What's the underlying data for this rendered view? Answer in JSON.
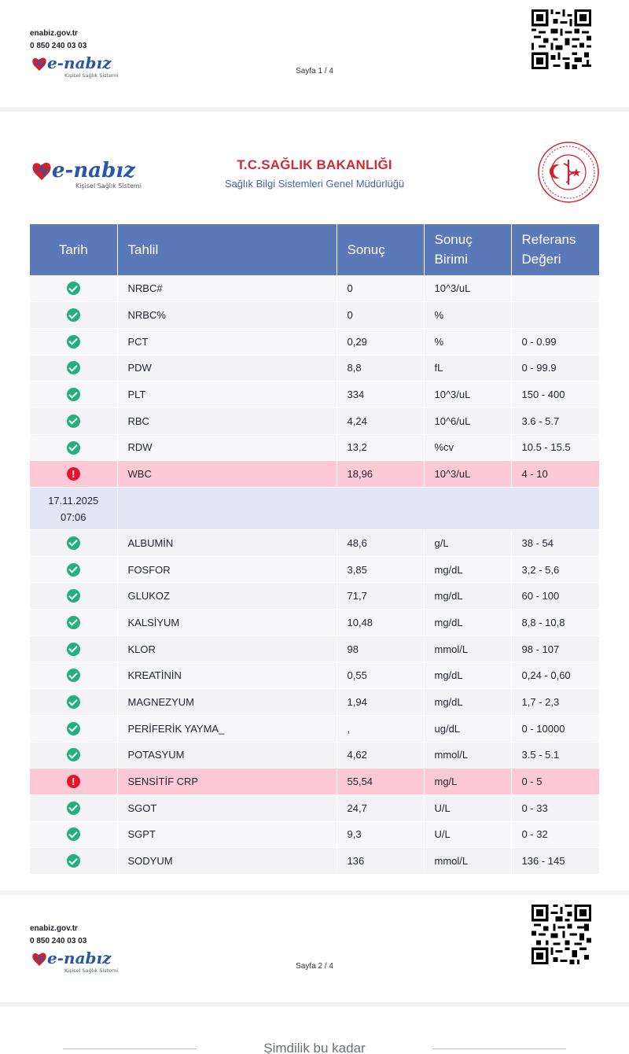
{
  "footer": {
    "site": "enabiz.gov.tr",
    "phone": "0 850 240 03 03",
    "logo_text": "e-nabız",
    "logo_tagline": "Kişisel Sağlık Sistemi",
    "page_first": "Sayfa 1 / 4",
    "page_second": "Sayfa 2 / 4"
  },
  "header": {
    "logo_text": "e-nabız",
    "logo_tagline": "Kişisel Sağlık Sistemi",
    "title": "T.C.SAĞLIK BAKANLIĞI",
    "subtitle": "Sağlık Bilgi Sistemleri Genel Müdürlüğü",
    "seal_icon": "ministry-seal-icon"
  },
  "table": {
    "headers": [
      "Tarih",
      "Tahlil",
      "Sonuç",
      "Sonuç Birimi",
      "Referans Değeri"
    ],
    "rows_a": [
      {
        "status": "ok",
        "test": "NRBC#",
        "result": "0",
        "unit": "10^3/uL",
        "ref": ""
      },
      {
        "status": "ok",
        "test": "NRBC%",
        "result": "0",
        "unit": "%",
        "ref": ""
      },
      {
        "status": "ok",
        "test": "PCT",
        "result": "0,29",
        "unit": "%",
        "ref": "0 - 0.99"
      },
      {
        "status": "ok",
        "test": "PDW",
        "result": "8,8",
        "unit": "fL",
        "ref": "0 - 99.9"
      },
      {
        "status": "ok",
        "test": "PLT",
        "result": "334",
        "unit": "10^3/uL",
        "ref": "150 - 400"
      },
      {
        "status": "ok",
        "test": "RBC",
        "result": "4,24",
        "unit": "10^6/uL",
        "ref": "3.6 - 5.7"
      },
      {
        "status": "ok",
        "test": "RDW",
        "result": "13,2",
        "unit": "%cv",
        "ref": "10.5 - 15.5"
      },
      {
        "status": "bad",
        "test": "WBC",
        "result": "18,96",
        "unit": "10^3/uL",
        "ref": "4 - 10"
      }
    ],
    "date_row": {
      "date": "17.11.2025",
      "time": "07:06"
    },
    "rows_b": [
      {
        "status": "ok",
        "test": "ALBUMİN",
        "result": "48,6",
        "unit": "g/L",
        "ref": "38 - 54"
      },
      {
        "status": "ok",
        "test": "FOSFOR",
        "result": "3,85",
        "unit": "mg/dL",
        "ref": "3,2 - 5,6"
      },
      {
        "status": "ok",
        "test": "GLUKOZ",
        "result": "71,7",
        "unit": "mg/dL",
        "ref": "60 - 100"
      },
      {
        "status": "ok",
        "test": "KALSİYUM",
        "result": "10,48",
        "unit": "mg/dL",
        "ref": "8,8 - 10,8"
      },
      {
        "status": "ok",
        "test": "KLOR",
        "result": "98",
        "unit": "mmol/L",
        "ref": "98 - 107"
      },
      {
        "status": "ok",
        "test": "KREATİNİN",
        "result": "0,55",
        "unit": "mg/dL",
        "ref": "0,24 - 0,60"
      },
      {
        "status": "ok",
        "test": "MAGNEZYUM",
        "result": "1,94",
        "unit": "mg/dL",
        "ref": "1,7 - 2,3"
      },
      {
        "status": "ok",
        "test": "PERİFERİK YAYMA_",
        "result": ",",
        "unit": "ug/dL",
        "ref": "0 - 10000"
      },
      {
        "status": "ok",
        "test": "POTASYUM",
        "result": "4,62",
        "unit": "mmol/L",
        "ref": "3.5 - 5.1"
      },
      {
        "status": "bad",
        "test": "SENSİTİF CRP",
        "result": "55,54",
        "unit": "mg/L",
        "ref": "0 - 5"
      },
      {
        "status": "ok",
        "test": "SGOT",
        "result": "24,7",
        "unit": "U/L",
        "ref": "0 - 33"
      },
      {
        "status": "ok",
        "test": "SGPT",
        "result": "9,3",
        "unit": "U/L",
        "ref": "0 - 32"
      },
      {
        "status": "ok",
        "test": "SODYUM",
        "result": "136",
        "unit": "mmol/L",
        "ref": "136 - 145"
      }
    ]
  },
  "end_text": "Şimdilik bu kadar",
  "colors": {
    "header_bg": "#5b79b9",
    "abnormal_bg": "#fdc9d6",
    "date_row_bg": "#e3e7f5",
    "ok_icon": "#22b07f",
    "bad_icon": "#e3142b",
    "title_red": "#d62a32",
    "subtitle_blue": "#3f64b5"
  }
}
